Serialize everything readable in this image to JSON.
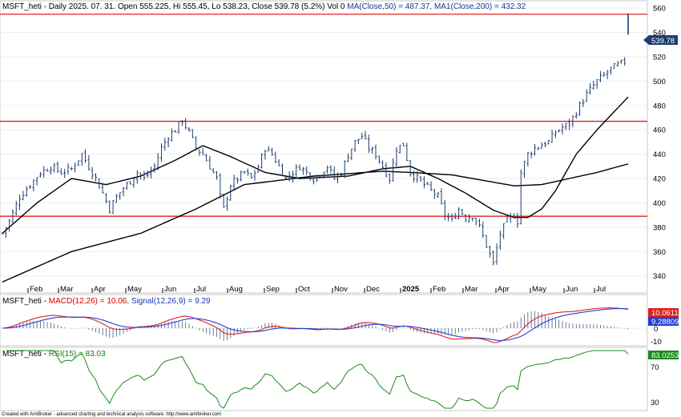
{
  "chart_data": {
    "type": "ohlc",
    "title": {
      "symbol": "MSFT_heti",
      "info": " - Daily 2025. 07. 31. Open 555.225, Hi 555.45, Lo 538.23, Close 539.78 (5.2%) Vol 0 ",
      "ma50": "MA(Close,50) = 487.37,",
      "ma200": " MA1(Close,200) = 432.32"
    },
    "x_labels": [
      "Feb",
      "Mar",
      "Apr",
      "May",
      "Jun",
      "Jul",
      "Aug",
      "Sep",
      "Oct",
      "Nov",
      "Dec",
      "2025",
      "Feb",
      "Mar",
      "Apr",
      "May",
      "Jun",
      "Jul"
    ],
    "price_axis": {
      "ylim": [
        326,
        566
      ],
      "ticks": [
        560,
        540,
        520,
        500,
        480,
        460,
        440,
        420,
        400,
        380,
        360,
        340
      ]
    },
    "horizontal_lines": [
      555,
      467,
      389
    ],
    "last_price_label": "539.78",
    "price_path": [
      [
        0,
        375
      ],
      [
        2,
        385
      ],
      [
        5,
        405
      ],
      [
        8,
        415
      ],
      [
        11,
        425
      ],
      [
        14,
        430
      ],
      [
        17,
        425
      ],
      [
        20,
        428
      ],
      [
        23,
        440
      ],
      [
        25,
        430
      ],
      [
        27,
        420
      ],
      [
        29,
        408
      ],
      [
        31,
        395
      ],
      [
        33,
        405
      ],
      [
        35,
        412
      ],
      [
        37,
        418
      ],
      [
        39,
        425
      ],
      [
        41,
        420
      ],
      [
        44,
        430
      ],
      [
        46,
        445
      ],
      [
        48,
        455
      ],
      [
        50,
        460
      ],
      [
        52,
        468
      ],
      [
        54,
        458
      ],
      [
        56,
        445
      ],
      [
        58,
        440
      ],
      [
        60,
        430
      ],
      [
        62,
        420
      ],
      [
        63,
        405
      ],
      [
        64,
        395
      ],
      [
        66,
        415
      ],
      [
        68,
        420
      ],
      [
        70,
        425
      ],
      [
        72,
        420
      ],
      [
        74,
        430
      ],
      [
        76,
        445
      ],
      [
        78,
        440
      ],
      [
        80,
        430
      ],
      [
        82,
        420
      ],
      [
        84,
        425
      ],
      [
        86,
        430
      ],
      [
        88,
        425
      ],
      [
        90,
        420
      ],
      [
        92,
        425
      ],
      [
        94,
        430
      ],
      [
        96,
        420
      ],
      [
        98,
        425
      ],
      [
        100,
        440
      ],
      [
        102,
        450
      ],
      [
        104,
        455
      ],
      [
        106,
        445
      ],
      [
        108,
        440
      ],
      [
        110,
        430
      ],
      [
        112,
        420
      ],
      [
        114,
        445
      ],
      [
        116,
        448
      ],
      [
        118,
        425
      ],
      [
        120,
        420
      ],
      [
        122,
        415
      ],
      [
        124,
        410
      ],
      [
        126,
        405
      ],
      [
        128,
        390
      ],
      [
        130,
        385
      ],
      [
        132,
        395
      ],
      [
        134,
        388
      ],
      [
        136,
        390
      ],
      [
        138,
        380
      ],
      [
        140,
        365
      ],
      [
        142,
        350
      ],
      [
        144,
        375
      ],
      [
        146,
        385
      ],
      [
        148,
        390
      ],
      [
        149,
        385
      ],
      [
        150,
        425
      ],
      [
        152,
        440
      ],
      [
        154,
        445
      ],
      [
        156,
        448
      ],
      [
        158,
        450
      ],
      [
        160,
        458
      ],
      [
        162,
        462
      ],
      [
        164,
        465
      ],
      [
        166,
        475
      ],
      [
        168,
        485
      ],
      [
        170,
        493
      ],
      [
        172,
        500
      ],
      [
        174,
        505
      ],
      [
        176,
        510
      ],
      [
        178,
        513
      ],
      [
        180,
        516
      ]
    ],
    "ma50": [
      [
        0,
        375
      ],
      [
        10,
        400
      ],
      [
        20,
        420
      ],
      [
        30,
        415
      ],
      [
        40,
        422
      ],
      [
        50,
        435
      ],
      [
        58,
        447
      ],
      [
        66,
        438
      ],
      [
        76,
        425
      ],
      [
        86,
        420
      ],
      [
        100,
        422
      ],
      [
        110,
        428
      ],
      [
        118,
        430
      ],
      [
        126,
        420
      ],
      [
        134,
        408
      ],
      [
        142,
        394
      ],
      [
        148,
        388
      ],
      [
        152,
        388
      ],
      [
        156,
        395
      ],
      [
        160,
        410
      ],
      [
        166,
        440
      ],
      [
        172,
        460
      ],
      [
        178,
        478
      ],
      [
        181,
        487
      ]
    ],
    "ma200": [
      [
        0,
        335
      ],
      [
        20,
        360
      ],
      [
        40,
        375
      ],
      [
        56,
        395
      ],
      [
        70,
        415
      ],
      [
        90,
        422
      ],
      [
        110,
        426
      ],
      [
        118,
        425
      ],
      [
        130,
        423
      ],
      [
        140,
        418
      ],
      [
        148,
        414
      ],
      [
        156,
        415
      ],
      [
        164,
        420
      ],
      [
        172,
        425
      ],
      [
        181,
        432
      ]
    ],
    "macd": {
      "label": "MACD(12,26) = 10.06,",
      "signal_label": " Signal(12,26,9) = 9.29",
      "value_labels": [
        "10.0611",
        "9.28809"
      ],
      "ticks": [
        "0",
        "-10"
      ]
    },
    "rsi": {
      "label": "RSI(15) = 83.03",
      "value_label": "83.0253",
      "ticks": [
        "70",
        "30"
      ]
    },
    "footer": "Created with AmiBroker - advanced charting and technical analysis software. http://www.amibroker.com"
  }
}
